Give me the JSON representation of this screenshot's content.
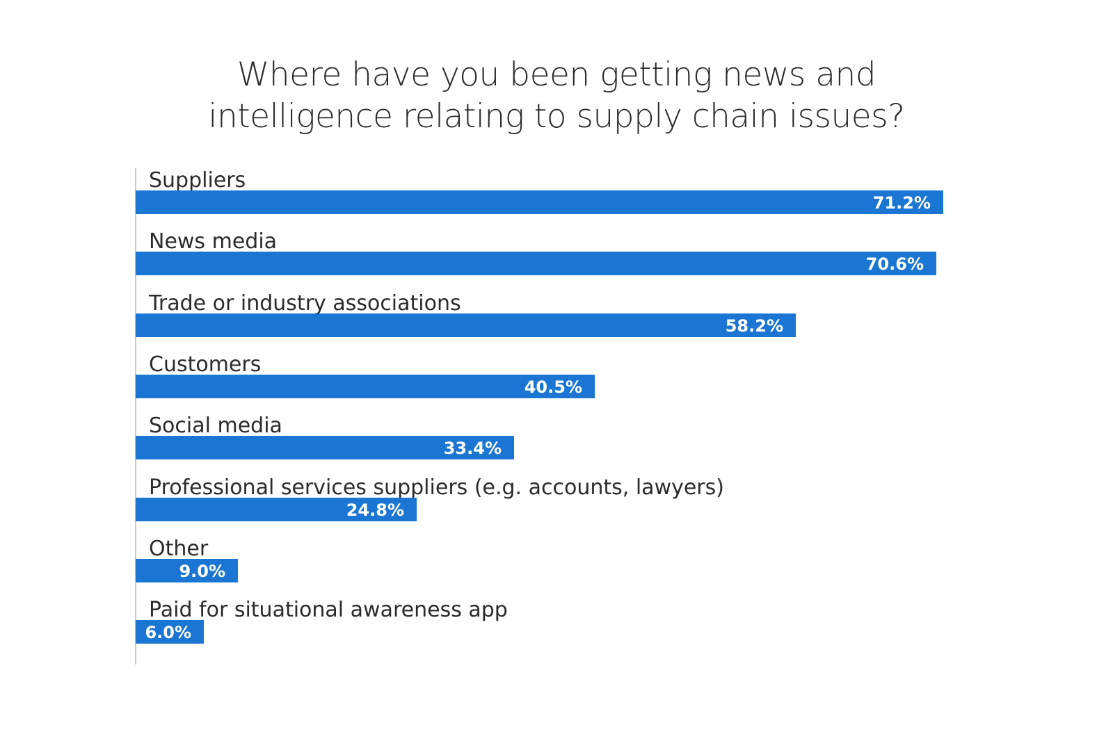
{
  "title": {
    "line1": "Where have you been getting news and",
    "line2": "intelligence relating to supply chain issues?"
  },
  "colors": {
    "bar": "#1a76d2",
    "label_text": "#2b2b2b",
    "value_text": "#ffffff",
    "axis": "#c8c8c8"
  },
  "rows": [
    {
      "label": "Suppliers",
      "value_label": "71.2%"
    },
    {
      "label": "News media",
      "value_label": "70.6%"
    },
    {
      "label": "Trade or industry associations",
      "value_label": "58.2%"
    },
    {
      "label": "Customers",
      "value_label": "40.5%"
    },
    {
      "label": "Social media",
      "value_label": "33.4%"
    },
    {
      "label": "Professional services suppliers (e.g. accounts, lawyers)",
      "value_label": "24.8%"
    },
    {
      "label": "Other",
      "value_label": "9.0%"
    },
    {
      "label": "Paid for situational awareness app",
      "value_label": "6.0%"
    }
  ],
  "chart_data": {
    "type": "bar",
    "orientation": "horizontal",
    "title": "Where have you been getting news and intelligence relating to supply chain issues?",
    "categories": [
      "Suppliers",
      "News media",
      "Trade or industry associations",
      "Customers",
      "Social media",
      "Professional services suppliers (e.g. accounts, lawyers)",
      "Other",
      "Paid for situational awareness app"
    ],
    "values": [
      71.2,
      70.6,
      58.2,
      40.5,
      33.4,
      24.8,
      9.0,
      6.0
    ],
    "unit": "%",
    "xlabel": "",
    "ylabel": "",
    "data_labels": true,
    "grid": false,
    "legend": null
  }
}
